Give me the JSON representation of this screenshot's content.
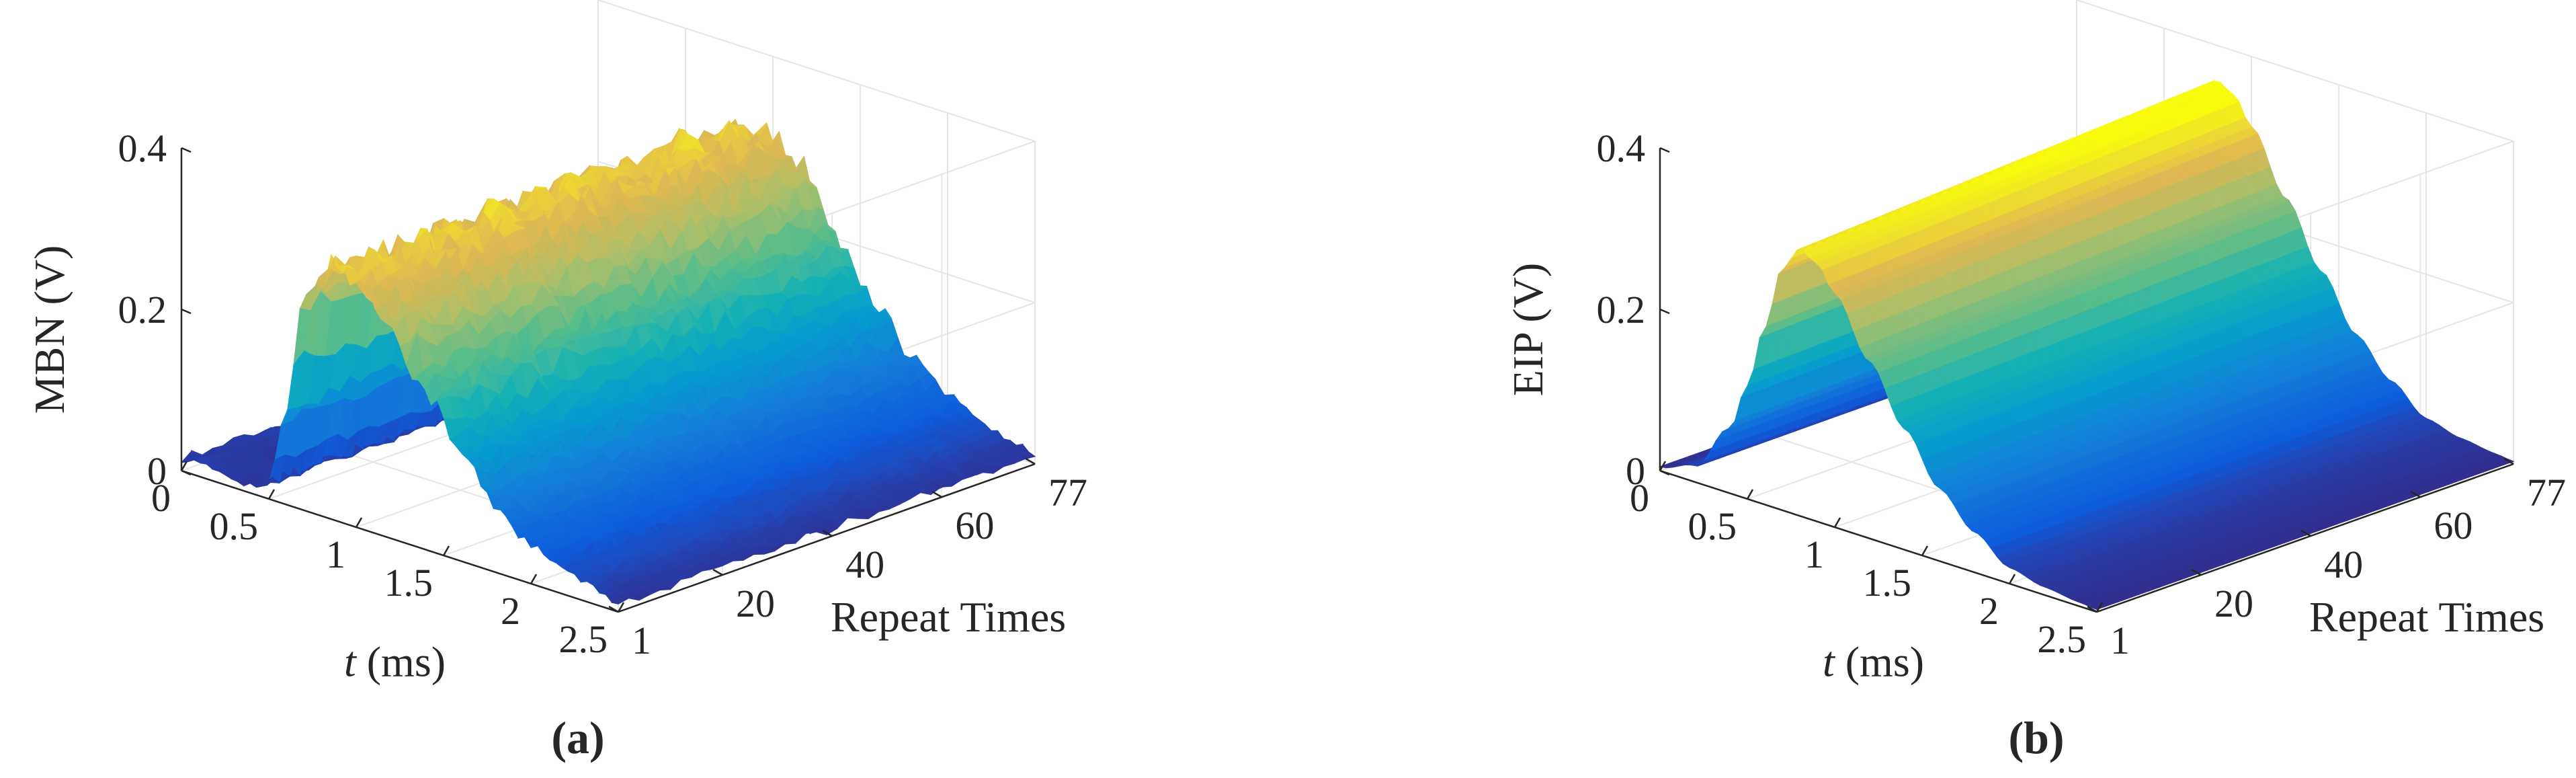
{
  "chart_data": [
    {
      "type": "surface",
      "panel_label": "(a)",
      "zlabel": "MBN (V)",
      "xlabel_var": "t",
      "xlabel_unit": " (ms)",
      "ylabel": "Repeat Times",
      "z_ticks": [
        "0",
        "0.2",
        "0.4"
      ],
      "x_ticks": [
        "0",
        "0.5",
        "1",
        "1.5",
        "2",
        "2.5"
      ],
      "y_ticks": [
        "1",
        "20",
        "40",
        "60",
        "77"
      ],
      "xlim": [
        0,
        2.5
      ],
      "ylim": [
        1,
        77
      ],
      "zlim": [
        0,
        0.4
      ],
      "grid": true,
      "colormap": "parula",
      "repeat_count": 77,
      "profile_t_ms": [
        0,
        0.2,
        0.4,
        0.5,
        0.6,
        0.7,
        0.8,
        0.9,
        1.0,
        1.2,
        1.4,
        1.6,
        1.8,
        2.0,
        2.2,
        2.4,
        2.5
      ],
      "profile_mean_V": [
        0.015,
        0.012,
        0.01,
        0.02,
        0.12,
        0.26,
        0.3,
        0.31,
        0.3,
        0.27,
        0.2,
        0.13,
        0.08,
        0.05,
        0.03,
        0.015,
        0.01
      ],
      "noise_amplitude_V": 0.02
    },
    {
      "type": "surface",
      "panel_label": "(b)",
      "zlabel": "EIP (V)",
      "xlabel_var": "t",
      "xlabel_unit": " (ms)",
      "ylabel": "Repeat Times",
      "z_ticks": [
        "0",
        "0.2",
        "0.4"
      ],
      "x_ticks": [
        "0",
        "0.5",
        "1",
        "1.5",
        "2",
        "2.5"
      ],
      "y_ticks": [
        "1",
        "20",
        "40",
        "60",
        "77"
      ],
      "xlim": [
        0,
        2.5
      ],
      "ylim": [
        1,
        77
      ],
      "zlim": [
        0,
        0.4
      ],
      "grid": true,
      "colormap": "parula",
      "repeat_count": 77,
      "profile_t_ms": [
        0,
        0.2,
        0.4,
        0.5,
        0.6,
        0.7,
        0.8,
        0.9,
        1.0,
        1.2,
        1.4,
        1.6,
        1.8,
        2.0,
        2.2,
        2.4,
        2.5
      ],
      "profile_mean_V": [
        0.005,
        0.02,
        0.08,
        0.14,
        0.22,
        0.3,
        0.33,
        0.32,
        0.29,
        0.22,
        0.15,
        0.09,
        0.05,
        0.02,
        0.01,
        0.005,
        0.003
      ],
      "noise_amplitude_V": 0.0
    }
  ]
}
